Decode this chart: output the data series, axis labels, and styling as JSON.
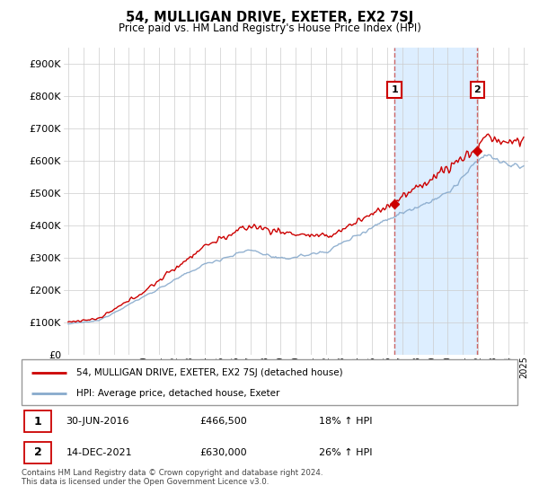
{
  "title": "54, MULLIGAN DRIVE, EXETER, EX2 7SJ",
  "subtitle": "Price paid vs. HM Land Registry's House Price Index (HPI)",
  "ylabel_ticks": [
    "£0",
    "£100K",
    "£200K",
    "£300K",
    "£400K",
    "£500K",
    "£600K",
    "£700K",
    "£800K",
    "£900K"
  ],
  "ytick_values": [
    0,
    100000,
    200000,
    300000,
    400000,
    500000,
    600000,
    700000,
    800000,
    900000
  ],
  "ylim": [
    0,
    950000
  ],
  "xlim_start": 1994.7,
  "xlim_end": 2025.3,
  "marker1_x": 2016.5,
  "marker1_y": 466500,
  "marker2_x": 2021.95,
  "marker2_y": 630000,
  "legend_line1": "54, MULLIGAN DRIVE, EXETER, EX2 7SJ (detached house)",
  "legend_line2": "HPI: Average price, detached house, Exeter",
  "footer": "Contains HM Land Registry data © Crown copyright and database right 2024.\nThis data is licensed under the Open Government Licence v3.0.",
  "table_row1": [
    "1",
    "30-JUN-2016",
    "£466,500",
    "18% ↑ HPI"
  ],
  "table_row2": [
    "2",
    "14-DEC-2021",
    "£630,000",
    "26% ↑ HPI"
  ],
  "line_color_red": "#cc0000",
  "line_color_blue": "#88aacc",
  "vline_color": "#cc6666",
  "shade_color": "#ddeeff",
  "background_color": "#ffffff",
  "grid_color": "#cccccc"
}
